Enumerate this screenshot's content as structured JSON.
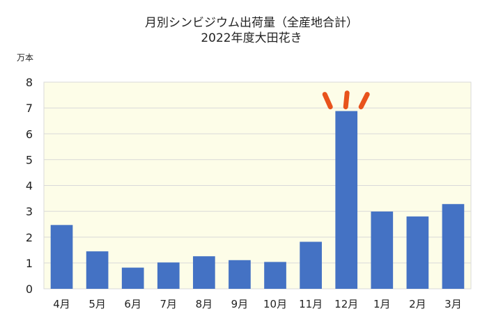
{
  "chart_data": {
    "type": "bar",
    "title": "月別シンビジウム出荷量（全産地合計）",
    "subtitle": "2022年度大田花き",
    "ylabel": "万本",
    "xlabel": "",
    "categories": [
      "4月",
      "5月",
      "6月",
      "7月",
      "8月",
      "9月",
      "10月",
      "11月",
      "12月",
      "1月",
      "2月",
      "3月"
    ],
    "values": [
      2.47,
      1.45,
      0.82,
      1.02,
      1.26,
      1.11,
      1.04,
      1.82,
      6.88,
      2.99,
      2.8,
      3.28
    ],
    "ylim": [
      0,
      8
    ],
    "yticks": [
      "0",
      "1",
      "2",
      "3",
      "4",
      "5",
      "6",
      "7",
      "8"
    ],
    "grid": true,
    "legend": "none",
    "colors": {
      "bar": "#4472C4",
      "plot_background": "#FDFDE8",
      "grid": "#D9D9D9",
      "accent_marks": "#E8531C"
    },
    "annotation": "highlight marks above 12月 bar"
  }
}
